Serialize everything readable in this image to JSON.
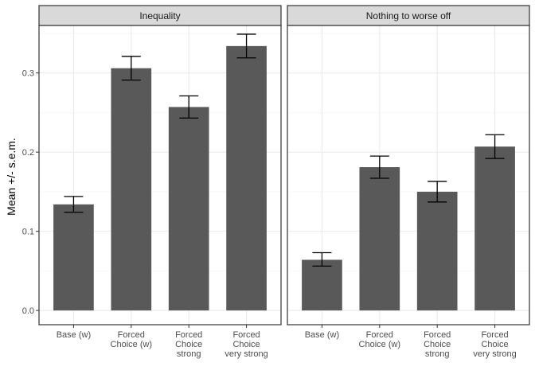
{
  "chart_data": {
    "type": "bar",
    "ylabel": "Mean +/- s.e.m.",
    "xlabel": "",
    "ylim": [
      -0.018,
      0.36
    ],
    "yticks": [
      "0.0",
      "0.1",
      "0.2",
      "0.3"
    ],
    "grid": true,
    "categories": [
      [
        "Base (w)"
      ],
      [
        "Forced",
        "Choice (w)"
      ],
      [
        "Forced",
        "Choice",
        "strong"
      ],
      [
        "Forced",
        "Choice",
        "very strong"
      ]
    ],
    "colors": {
      "bar": "#595959",
      "strip_fill": "#d9d9d9",
      "panel_border": "#333333",
      "grid_major": "#ebebeb",
      "grid_minor": "#f5f5f5",
      "error_bar": "#000000"
    },
    "panels": [
      {
        "title": "Inequality",
        "values": [
          0.134,
          0.306,
          0.257,
          0.334
        ],
        "err_low": [
          0.124,
          0.291,
          0.243,
          0.319
        ],
        "err_high": [
          0.144,
          0.321,
          0.271,
          0.349
        ]
      },
      {
        "title": "Nothing to worse off",
        "values": [
          0.064,
          0.181,
          0.15,
          0.207
        ],
        "err_low": [
          0.056,
          0.167,
          0.137,
          0.192
        ],
        "err_high": [
          0.073,
          0.195,
          0.163,
          0.222
        ]
      }
    ]
  }
}
